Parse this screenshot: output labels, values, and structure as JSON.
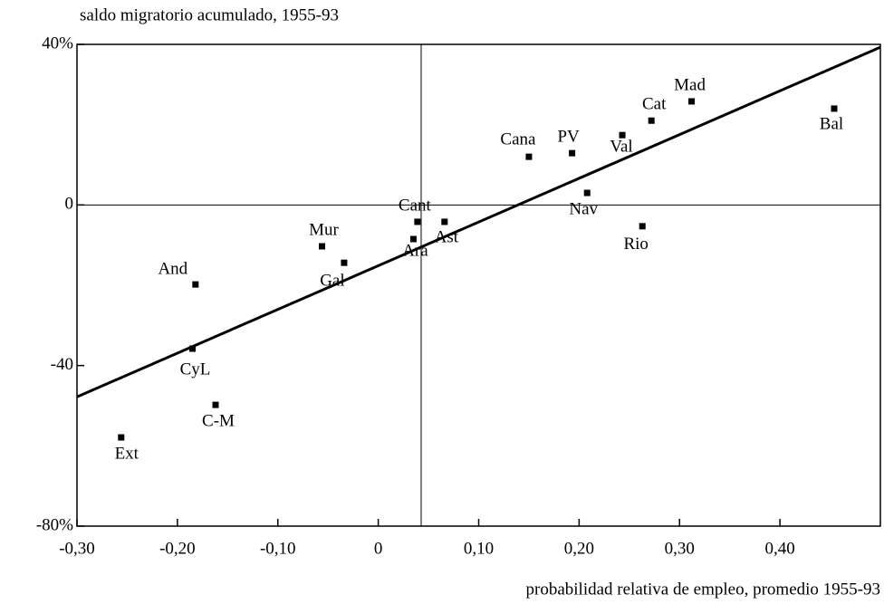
{
  "chart_data": {
    "type": "scatter",
    "title": "saldo migratorio acumulado, 1955-93",
    "x_label": "probabilidad relativa de empleo, promedio 1955-93",
    "labels": [
      "Ext",
      "C-M",
      "CyL",
      "And",
      "Mur",
      "Gal",
      "Ara",
      "Cant",
      "Ast",
      "Cana",
      "PV",
      "Nav",
      "Val",
      "Rio",
      "Cat",
      "Mad",
      "Bal"
    ],
    "x": [
      -0.256,
      -0.162,
      -0.185,
      -0.182,
      -0.056,
      -0.034,
      0.035,
      0.039,
      0.066,
      0.15,
      0.193,
      0.208,
      0.243,
      0.263,
      0.272,
      0.312,
      0.454
    ],
    "values": [
      -57.9,
      -49.8,
      -35.8,
      -19.8,
      -10.3,
      -14.4,
      -8.5,
      -4.2,
      -4.2,
      12.0,
      12.9,
      3.0,
      17.4,
      -5.3,
      21.0,
      25.8,
      24.0
    ],
    "color": "#000000",
    "trend": {
      "x": [
        -0.3,
        0.5
      ],
      "values": [
        -47.8,
        39.3
      ]
    },
    "xlim": [
      -0.3,
      0.5
    ],
    "xticks": [
      {
        "value": -0.3,
        "label": "-0,30"
      },
      {
        "value": -0.2,
        "label": "-0,20"
      },
      {
        "value": -0.1,
        "label": "-0,10"
      },
      0,
      {
        "value": 0.1,
        "label": "0,10"
      },
      {
        "value": 0.2,
        "label": "0,20"
      },
      {
        "value": 0.3,
        "label": "0,30"
      },
      {
        "value": 0.4,
        "label": "0,40"
      }
    ],
    "ylim": [
      -80,
      40
    ],
    "yticks": [
      {
        "value": 40,
        "label": "40%"
      },
      0,
      -40,
      {
        "value": -80,
        "label": "-80%"
      }
    ]
  }
}
